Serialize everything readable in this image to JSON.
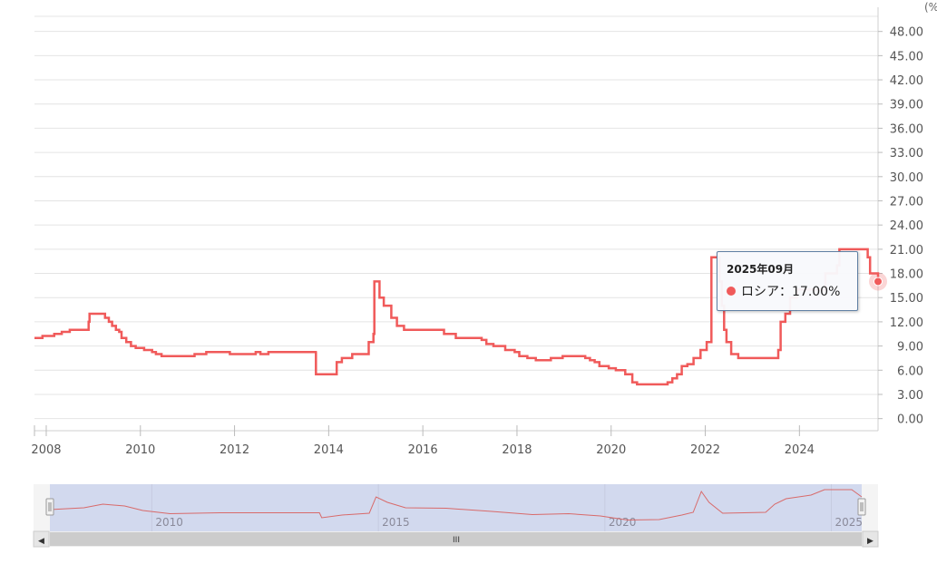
{
  "chart_data": {
    "type": "line",
    "step": true,
    "y_unit": "(%)",
    "ylim": [
      -1.5,
      51.0
    ],
    "yticks": [
      "0.00",
      "3.00",
      "6.00",
      "9.00",
      "12.00",
      "15.00",
      "18.00",
      "21.00",
      "24.00",
      "27.00",
      "30.00",
      "33.00",
      "36.00",
      "39.00",
      "42.00",
      "45.00",
      "48.00"
    ],
    "xlim": [
      2007.75,
      2025.5
    ],
    "xticks": [
      "2008",
      "2010",
      "2012",
      "2014",
      "2016",
      "2018",
      "2020",
      "2022",
      "2024"
    ],
    "grid": true,
    "series": [
      {
        "name": "ロシア",
        "color": "#f05a5a",
        "points": [
          [
            2007.75,
            10.0
          ],
          [
            2007.92,
            10.25
          ],
          [
            2008.17,
            10.5
          ],
          [
            2008.33,
            10.75
          ],
          [
            2008.5,
            11.0
          ],
          [
            2008.9,
            12.0
          ],
          [
            2008.92,
            13.0
          ],
          [
            2009.25,
            12.5
          ],
          [
            2009.33,
            12.0
          ],
          [
            2009.4,
            11.5
          ],
          [
            2009.48,
            11.0
          ],
          [
            2009.55,
            10.75
          ],
          [
            2009.6,
            10.0
          ],
          [
            2009.7,
            9.5
          ],
          [
            2009.8,
            9.0
          ],
          [
            2009.9,
            8.75
          ],
          [
            2010.08,
            8.5
          ],
          [
            2010.25,
            8.25
          ],
          [
            2010.33,
            8.0
          ],
          [
            2010.45,
            7.75
          ],
          [
            2011.15,
            8.0
          ],
          [
            2011.4,
            8.25
          ],
          [
            2011.9,
            8.0
          ],
          [
            2012.45,
            8.25
          ],
          [
            2012.55,
            8.0
          ],
          [
            2012.72,
            8.25
          ],
          [
            2013.75,
            8.25
          ],
          [
            2013.73,
            5.5
          ],
          [
            2014.17,
            7.0
          ],
          [
            2014.28,
            7.5
          ],
          [
            2014.5,
            8.0
          ],
          [
            2014.85,
            9.5
          ],
          [
            2014.95,
            10.5
          ],
          [
            2014.97,
            17.0
          ],
          [
            2015.08,
            15.0
          ],
          [
            2015.17,
            14.0
          ],
          [
            2015.33,
            12.5
          ],
          [
            2015.45,
            11.5
          ],
          [
            2015.6,
            11.0
          ],
          [
            2016.45,
            10.5
          ],
          [
            2016.7,
            10.0
          ],
          [
            2017.25,
            9.75
          ],
          [
            2017.35,
            9.25
          ],
          [
            2017.5,
            9.0
          ],
          [
            2017.75,
            8.5
          ],
          [
            2017.95,
            8.25
          ],
          [
            2018.05,
            7.75
          ],
          [
            2018.22,
            7.5
          ],
          [
            2018.4,
            7.25
          ],
          [
            2018.72,
            7.5
          ],
          [
            2018.97,
            7.75
          ],
          [
            2019.45,
            7.5
          ],
          [
            2019.55,
            7.25
          ],
          [
            2019.65,
            7.0
          ],
          [
            2019.75,
            6.5
          ],
          [
            2019.95,
            6.25
          ],
          [
            2020.1,
            6.0
          ],
          [
            2020.3,
            5.5
          ],
          [
            2020.45,
            4.5
          ],
          [
            2020.55,
            4.25
          ],
          [
            2021.2,
            4.5
          ],
          [
            2021.3,
            5.0
          ],
          [
            2021.4,
            5.5
          ],
          [
            2021.5,
            6.5
          ],
          [
            2021.62,
            6.75
          ],
          [
            2021.75,
            7.5
          ],
          [
            2021.9,
            8.5
          ],
          [
            2022.03,
            9.5
          ],
          [
            2022.13,
            20.0
          ],
          [
            2022.3,
            17.0
          ],
          [
            2022.35,
            14.0
          ],
          [
            2022.4,
            11.0
          ],
          [
            2022.45,
            9.5
          ],
          [
            2022.55,
            8.0
          ],
          [
            2022.7,
            7.5
          ],
          [
            2023.55,
            8.5
          ],
          [
            2023.6,
            12.0
          ],
          [
            2023.7,
            13.0
          ],
          [
            2023.8,
            15.0
          ],
          [
            2023.95,
            16.0
          ],
          [
            2024.55,
            18.0
          ],
          [
            2024.8,
            19.0
          ],
          [
            2024.85,
            21.0
          ],
          [
            2025.45,
            20.0
          ],
          [
            2025.5,
            18.0
          ],
          [
            2025.67,
            17.0
          ]
        ],
        "overview_points": [
          [
            2007.75,
            10.0
          ],
          [
            2008.5,
            11.0
          ],
          [
            2008.92,
            13.0
          ],
          [
            2009.4,
            12.0
          ],
          [
            2009.8,
            9.5
          ],
          [
            2010.4,
            7.75
          ],
          [
            2011.5,
            8.25
          ],
          [
            2013.7,
            8.25
          ],
          [
            2013.75,
            5.5
          ],
          [
            2014.2,
            7.0
          ],
          [
            2014.8,
            8.0
          ],
          [
            2014.95,
            17.0
          ],
          [
            2015.2,
            14.0
          ],
          [
            2015.6,
            11.0
          ],
          [
            2016.5,
            10.75
          ],
          [
            2017.5,
            9.0
          ],
          [
            2018.4,
            7.25
          ],
          [
            2019.2,
            7.75
          ],
          [
            2019.9,
            6.5
          ],
          [
            2020.5,
            4.25
          ],
          [
            2021.2,
            4.5
          ],
          [
            2021.7,
            7.0
          ],
          [
            2021.95,
            8.5
          ],
          [
            2022.13,
            20.0
          ],
          [
            2022.3,
            14.0
          ],
          [
            2022.6,
            8.0
          ],
          [
            2023.55,
            8.5
          ],
          [
            2023.75,
            13.0
          ],
          [
            2024.0,
            16.0
          ],
          [
            2024.55,
            18.0
          ],
          [
            2024.85,
            21.0
          ],
          [
            2025.45,
            21.0
          ],
          [
            2025.67,
            17.0
          ]
        ]
      }
    ],
    "highlight": {
      "x": 2025.67,
      "y": 17.0
    }
  },
  "tooltip": {
    "title": "2025年09月",
    "series": "ロシア",
    "separator": "：",
    "value": "17.00%"
  },
  "navigator": {
    "labels": [
      "2010",
      "2015",
      "2020",
      "2025"
    ],
    "grip": "III",
    "left_arrow": "◀",
    "right_arrow": "▶",
    "range_fill": "#d2d9ee",
    "line_color": "#d86a6a"
  }
}
